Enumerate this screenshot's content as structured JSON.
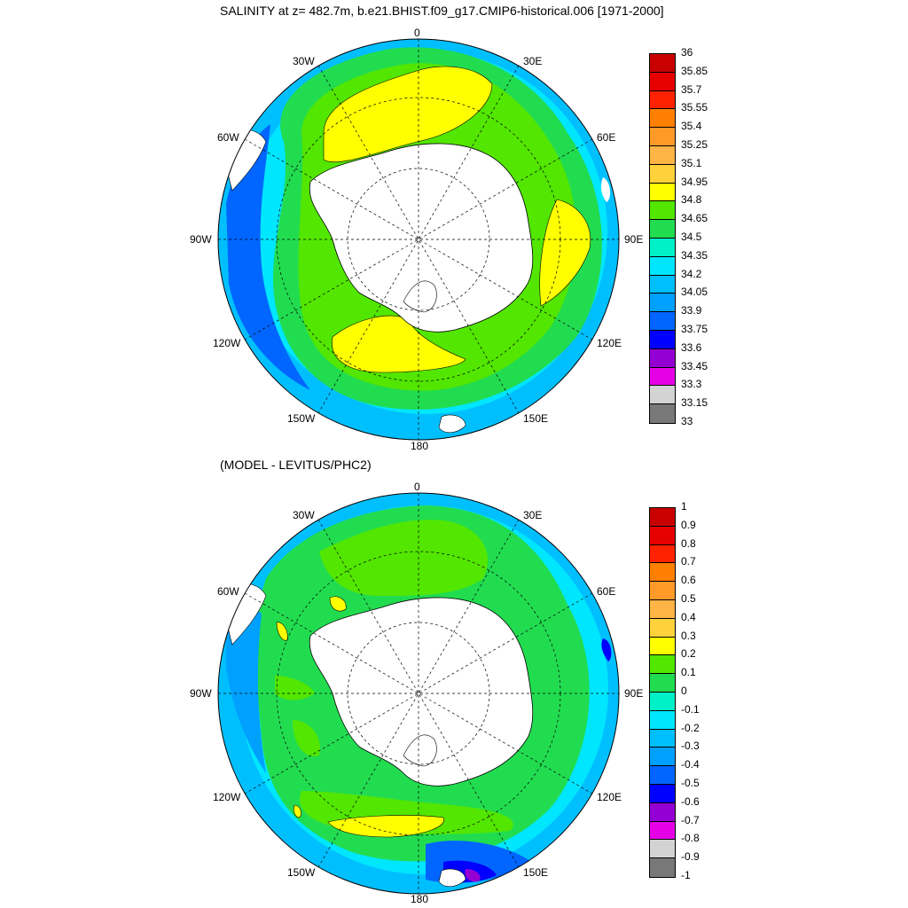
{
  "panels": [
    {
      "title": "SALINITY at z= 482.7m, b.e21.BHIST.f09_g17.CMIP6-historical.006 [1971-2000]",
      "longitude_labels": [
        "0",
        "30E",
        "60E",
        "90E",
        "120E",
        "150E",
        "180",
        "150W",
        "120W",
        "90W",
        "60W",
        "30W"
      ],
      "colorbar": {
        "levels": [
          "36",
          "35.85",
          "35.7",
          "35.55",
          "35.4",
          "35.25",
          "35.1",
          "34.95",
          "34.8",
          "34.65",
          "34.5",
          "34.35",
          "34.2",
          "34.05",
          "33.9",
          "33.75",
          "33.6",
          "33.45",
          "33.3",
          "33.15",
          "33"
        ],
        "colors": [
          "#c80000",
          "#e60000",
          "#ff2200",
          "#ff8000",
          "#ff9a28",
          "#ffb446",
          "#ffd23c",
          "#ffff00",
          "#52e600",
          "#22dc50",
          "#00f0c8",
          "#00e6ff",
          "#00bfff",
          "#00a0ff",
          "#0066ff",
          "#0000ff",
          "#9400d3",
          "#e600e6",
          "#d3d3d3",
          "#787878"
        ]
      }
    },
    {
      "title": "(MODEL - LEVITUS/PHC2)",
      "longitude_labels": [
        "0",
        "30E",
        "60E",
        "90E",
        "120E",
        "150E",
        "180",
        "150W",
        "120W",
        "90W",
        "60W",
        "30W"
      ],
      "colorbar": {
        "levels": [
          "1",
          "0.9",
          "0.8",
          "0.7",
          "0.6",
          "0.5",
          "0.4",
          "0.3",
          "0.2",
          "0.1",
          "0",
          "-0.1",
          "-0.2",
          "-0.3",
          "-0.4",
          "-0.5",
          "-0.6",
          "-0.7",
          "-0.8",
          "-0.9",
          "-1"
        ],
        "colors": [
          "#c80000",
          "#e60000",
          "#ff2200",
          "#ff8000",
          "#ff9a28",
          "#ffb446",
          "#ffd23c",
          "#ffff00",
          "#52e600",
          "#22dc50",
          "#00f0c8",
          "#00e6ff",
          "#00bfff",
          "#00a0ff",
          "#0066ff",
          "#0000ff",
          "#9400d3",
          "#e600e6",
          "#d3d3d3",
          "#787878"
        ]
      }
    }
  ]
}
